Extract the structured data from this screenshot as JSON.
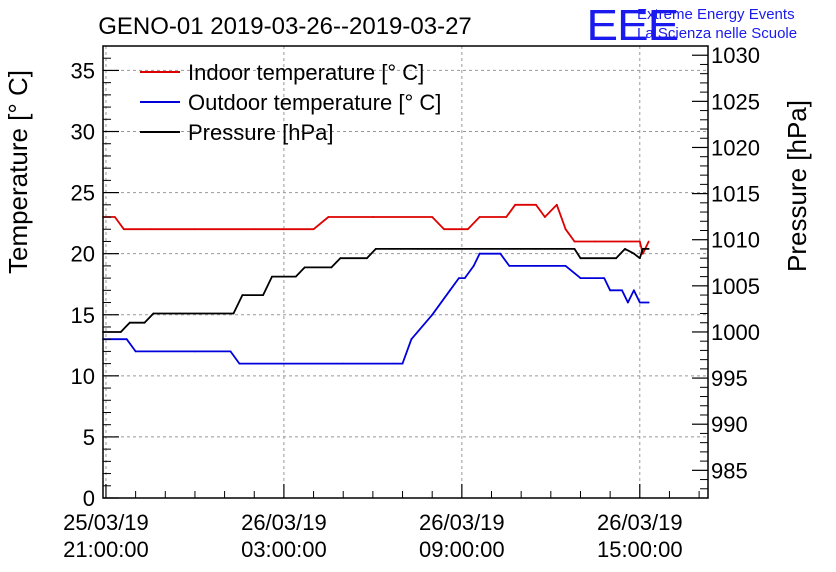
{
  "chart_data": {
    "type": "line",
    "title": "GENO-01 2019-03-26--2019-03-27",
    "logo": {
      "mark": "EEE",
      "line1": "Extreme Energy Events",
      "line2": "La Scienza nelle Scuole"
    },
    "ylabel_left": "Temperature [° C]",
    "ylabel_right": "Pressure [hPa]",
    "ylim_left": [
      0,
      37
    ],
    "ylim_right": [
      982,
      1031
    ],
    "xlim_hours": [
      -0.1,
      20.3
    ],
    "x_ticks": [
      {
        "h": 0,
        "line1": "25/03/19",
        "line2": "21:00:00"
      },
      {
        "h": 6,
        "line1": "26/03/19",
        "line2": "03:00:00"
      },
      {
        "h": 12,
        "line1": "26/03/19",
        "line2": "09:00:00"
      },
      {
        "h": 18,
        "line1": "26/03/19",
        "line2": "15:00:00"
      }
    ],
    "y_ticks_left": [
      0,
      5,
      10,
      15,
      20,
      25,
      30,
      35
    ],
    "y_ticks_right": [
      985,
      990,
      995,
      1000,
      1005,
      1010,
      1015,
      1020,
      1025,
      1030
    ],
    "grid": true,
    "legend_position": "top-left",
    "series": [
      {
        "name": "Indoor temperature [° C]",
        "axis": "left",
        "color": "#dd0000",
        "points": [
          [
            -0.1,
            23
          ],
          [
            0.3,
            23
          ],
          [
            0.6,
            22
          ],
          [
            1.5,
            22
          ],
          [
            3,
            22
          ],
          [
            5,
            22
          ],
          [
            7,
            22
          ],
          [
            7.5,
            23
          ],
          [
            9,
            23
          ],
          [
            11,
            23
          ],
          [
            11.4,
            22
          ],
          [
            12.2,
            22
          ],
          [
            12.6,
            23
          ],
          [
            13.5,
            23
          ],
          [
            13.8,
            24
          ],
          [
            14.5,
            24
          ],
          [
            14.8,
            23
          ],
          [
            15.2,
            24
          ],
          [
            15.5,
            22
          ],
          [
            15.8,
            21
          ],
          [
            16.5,
            21
          ],
          [
            17.5,
            21
          ],
          [
            18,
            21
          ],
          [
            18.1,
            20
          ],
          [
            18.3,
            21
          ]
        ]
      },
      {
        "name": "Outdoor temperature [° C]",
        "axis": "left",
        "color": "#0000dd",
        "points": [
          [
            -0.1,
            13
          ],
          [
            0.7,
            13
          ],
          [
            1,
            12
          ],
          [
            3,
            12
          ],
          [
            4.2,
            12
          ],
          [
            4.5,
            11
          ],
          [
            6,
            11
          ],
          [
            8,
            11
          ],
          [
            9.7,
            11
          ],
          [
            10,
            11
          ],
          [
            10.3,
            13
          ],
          [
            11,
            15
          ],
          [
            11.6,
            17
          ],
          [
            11.9,
            18
          ],
          [
            12.1,
            18
          ],
          [
            12.4,
            19
          ],
          [
            12.6,
            20
          ],
          [
            13.3,
            20
          ],
          [
            13.6,
            19
          ],
          [
            14.5,
            19
          ],
          [
            15.5,
            19
          ],
          [
            16,
            18
          ],
          [
            16.8,
            18
          ],
          [
            17,
            17
          ],
          [
            17.4,
            17
          ],
          [
            17.6,
            16
          ],
          [
            17.8,
            17
          ],
          [
            18,
            16
          ],
          [
            18.3,
            16
          ]
        ]
      },
      {
        "name": "Pressure [hPa]",
        "axis": "right",
        "color": "#000000",
        "points": [
          [
            -0.1,
            1000
          ],
          [
            0.5,
            1000
          ],
          [
            0.8,
            1001
          ],
          [
            1.3,
            1001
          ],
          [
            1.6,
            1002
          ],
          [
            2.5,
            1002
          ],
          [
            4.3,
            1002
          ],
          [
            4.6,
            1004
          ],
          [
            5.3,
            1004
          ],
          [
            5.6,
            1006
          ],
          [
            6.4,
            1006
          ],
          [
            6.7,
            1007
          ],
          [
            7.6,
            1007
          ],
          [
            7.9,
            1008
          ],
          [
            8.8,
            1008
          ],
          [
            9.1,
            1009
          ],
          [
            10.5,
            1009
          ],
          [
            13,
            1009
          ],
          [
            14.5,
            1009
          ],
          [
            15.8,
            1009
          ],
          [
            16,
            1008
          ],
          [
            17.2,
            1008
          ],
          [
            17.5,
            1009
          ],
          [
            17.8,
            1008.5
          ],
          [
            18,
            1008
          ],
          [
            18.1,
            1009
          ],
          [
            18.3,
            1009
          ]
        ]
      }
    ]
  }
}
